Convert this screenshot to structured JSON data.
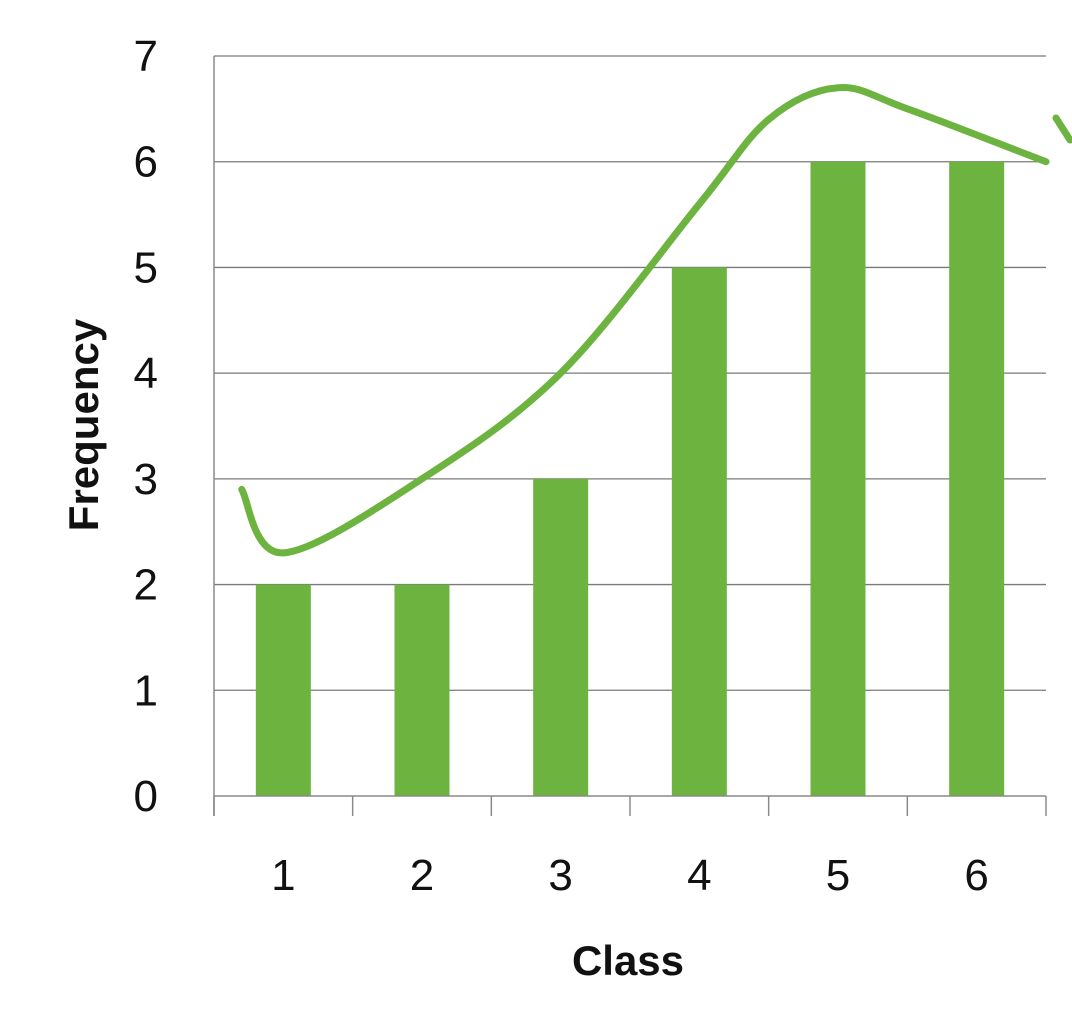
{
  "chart_data": {
    "type": "bar",
    "categories": [
      "1",
      "2",
      "3",
      "4",
      "5",
      "6"
    ],
    "values": [
      2,
      2,
      3,
      5,
      6,
      6
    ],
    "title": "",
    "xlabel": "Class",
    "ylabel": "Frequency",
    "ylim": [
      0,
      7
    ],
    "yticks": [
      "0",
      "1",
      "2",
      "3",
      "4",
      "5",
      "6",
      "7"
    ],
    "grid": true,
    "legend": "none",
    "bar_color": "#6db33f",
    "annotations": [
      {
        "type": "hand-drawn-curve",
        "color": "#6db33f",
        "description_points": [
          {
            "x": 0.7,
            "y": 2.9
          },
          {
            "x": 1.0,
            "y": 2.3
          },
          {
            "x": 2.0,
            "y": 3.0
          },
          {
            "x": 3.0,
            "y": 4.0
          },
          {
            "x": 4.0,
            "y": 5.6
          },
          {
            "x": 4.5,
            "y": 6.4
          },
          {
            "x": 5.0,
            "y": 6.7
          },
          {
            "x": 5.5,
            "y": 6.5
          },
          {
            "x": 6.5,
            "y": 6.0
          }
        ]
      }
    ]
  }
}
